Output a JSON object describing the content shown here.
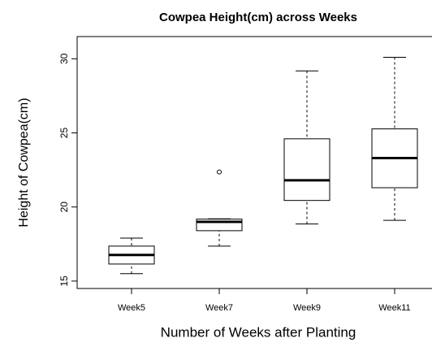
{
  "chart_data": {
    "type": "box",
    "title": "Cowpea Height(cm) across Weeks",
    "x_label": "Number of Weeks after Planting",
    "y_label": "Height of Cowpea(cm)",
    "categories": [
      "Week5",
      "Week7",
      "Week9",
      "Week11"
    ],
    "boxes": [
      {
        "min": 15.5,
        "q1": 16.15,
        "median": 16.76,
        "q3": 17.36,
        "max": 17.9,
        "outliers": []
      },
      {
        "min": 17.36,
        "q1": 18.4,
        "median": 19.0,
        "q3": 19.18,
        "max": 19.2,
        "outliers": [
          22.36
        ]
      },
      {
        "min": 18.85,
        "q1": 20.44,
        "median": 21.8,
        "q3": 24.6,
        "max": 29.18,
        "outliers": []
      },
      {
        "min": 19.1,
        "q1": 21.3,
        "median": 23.3,
        "q3": 25.27,
        "max": 30.1,
        "outliers": []
      }
    ],
    "color": "#000000",
    "ylim": [
      14.5,
      31.5
    ],
    "yticks": [
      15,
      20,
      25,
      30
    ]
  }
}
